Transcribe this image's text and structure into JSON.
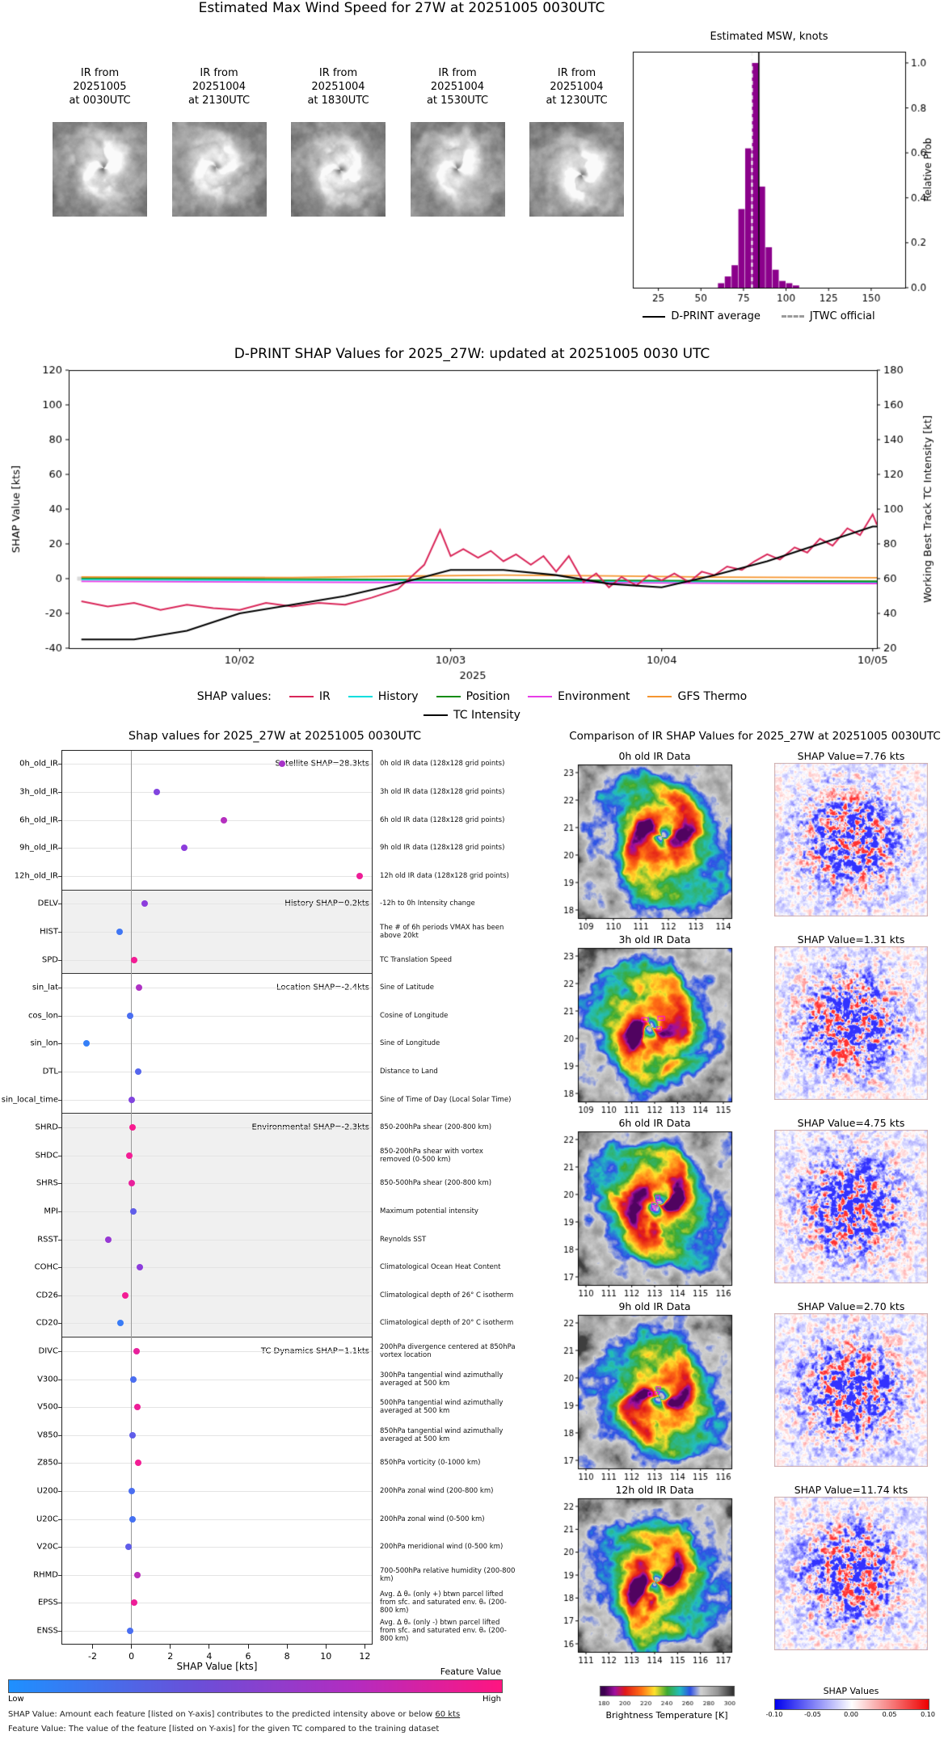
{
  "top": {
    "title": "Estimated Max Wind Speed for 27W at 20251005 0030UTC",
    "histogram_title": "Estimated MSW, knots",
    "thumbnails": [
      {
        "lines": [
          "IR from",
          "20251005",
          "at 0030UTC"
        ]
      },
      {
        "lines": [
          "IR from",
          "20251004",
          "at 2130UTC"
        ]
      },
      {
        "lines": [
          "IR from",
          "20251004",
          "at 1830UTC"
        ]
      },
      {
        "lines": [
          "IR from",
          "20251004",
          "at 1530UTC"
        ]
      },
      {
        "lines": [
          "IR from",
          "20251004",
          "at 1230UTC"
        ]
      }
    ],
    "legend": [
      {
        "label": "D-PRINT average",
        "color": "#000000",
        "style": "solid"
      },
      {
        "label": "JTWC official",
        "color": "#9a9a9a",
        "style": "dashed"
      }
    ]
  },
  "timeseries": {
    "title": "D-PRINT SHAP Values for 2025_27W: updated at 20251005 0030 UTC",
    "legend_prefix": "SHAP values:",
    "legend_row1": [
      {
        "label": "IR",
        "color": "#d92558"
      },
      {
        "label": "History",
        "color": "#00dede"
      },
      {
        "label": "Position",
        "color": "#128c12"
      },
      {
        "label": "Environment",
        "color": "#e83ce8"
      },
      {
        "label": "GFS Thermo",
        "color": "#f5952f"
      }
    ],
    "legend_row2": [
      {
        "label": "TC Intensity",
        "color": "#000000"
      }
    ]
  },
  "shap_panel": {
    "title": "Shap values for 2025_27W at 20251005 0030UTC",
    "xlabel": "SHAP Value [kts]",
    "colorbar": {
      "title": "Feature Value",
      "low": "Low",
      "high": "High"
    },
    "footnote1_pre": "SHAP Value: Amount each feature [listed on Y-axis] contributes to the predicted intensity above or below ",
    "footnote1_u": "60 kts",
    "footnote2": "Feature Value: The value of the feature [listed on Y-axis] for the given TC compared to the training dataset"
  },
  "comparison": {
    "title": "Comparison of IR SHAP Values for 2025_27W at 20251005 0030UTC",
    "rows": [
      {
        "ir_title": "0h old IR Data",
        "shap_title": "SHAP Value=7.76 kts",
        "xticks": [
          109,
          110,
          111,
          112,
          113,
          114
        ],
        "yticks": [
          18,
          19,
          20,
          21,
          22,
          23
        ],
        "seed": 11
      },
      {
        "ir_title": "3h old IR Data",
        "shap_title": "SHAP Value=1.31 kts",
        "xticks": [
          109,
          110,
          111,
          112,
          113,
          114,
          115
        ],
        "yticks": [
          18,
          19,
          20,
          21,
          22,
          23
        ],
        "seed": 23
      },
      {
        "ir_title": "6h old IR Data",
        "shap_title": "SHAP Value=4.75 kts",
        "xticks": [
          110,
          111,
          112,
          113,
          114,
          115,
          116
        ],
        "yticks": [
          17,
          18,
          19,
          20,
          21,
          22
        ],
        "seed": 37
      },
      {
        "ir_title": "9h old IR Data",
        "shap_title": "SHAP Value=2.70 kts",
        "xticks": [
          110,
          111,
          112,
          113,
          114,
          115,
          116
        ],
        "yticks": [
          17,
          18,
          19,
          20,
          21,
          22
        ],
        "seed": 41
      },
      {
        "ir_title": "12h old IR Data",
        "shap_title": "SHAP Value=11.74 kts",
        "xticks": [
          111,
          112,
          113,
          114,
          115,
          116,
          117
        ],
        "yticks": [
          16,
          17,
          18,
          19,
          20,
          21,
          22
        ],
        "seed": 53
      }
    ],
    "bt_colorbar": {
      "label": "Brightness Temperature [K]",
      "ticks": [
        180,
        200,
        220,
        240,
        260,
        280,
        300
      ]
    },
    "shap_colorbar": {
      "label": "SHAP Values",
      "ticks": [
        "-0.10",
        "-0.05",
        "0.00",
        "0.05",
        "0.10"
      ]
    }
  },
  "chart_data": [
    {
      "id": "msw_histogram",
      "type": "bar",
      "title": "Estimated MSW, knots",
      "ylabel": "Relative Prob",
      "xlim": [
        10,
        170
      ],
      "ylim": [
        0,
        1.05
      ],
      "xticks": [
        25,
        50,
        75,
        100,
        125,
        150
      ],
      "yticks": [
        0.0,
        0.2,
        0.4,
        0.6,
        0.8,
        1.0
      ],
      "bin_width": 4,
      "bin_centers": [
        62,
        66,
        70,
        74,
        78,
        82,
        86,
        90,
        94,
        98,
        102,
        106
      ],
      "values": [
        0.02,
        0.05,
        0.1,
        0.35,
        0.62,
        1.0,
        0.45,
        0.18,
        0.08,
        0.03,
        0.02,
        0.01
      ],
      "bar_color": "#8b008b",
      "dprint_average": 84,
      "jtwc_official": 80
    },
    {
      "id": "shap_timeseries",
      "type": "line",
      "title": "D-PRINT SHAP Values for 2025_27W: updated at 20251005 0030 UTC",
      "ylabel_left": "SHAP Value [kts]",
      "ylabel_right": "Working Best Track TC Intensity [kt]",
      "xlabel_year": "2025",
      "ylim_left": [
        -40,
        120
      ],
      "ylim_right": [
        20,
        180
      ],
      "yticks_left": [
        -40,
        -20,
        0,
        20,
        40,
        60,
        80,
        100,
        120
      ],
      "yticks_right": [
        20,
        40,
        60,
        80,
        100,
        120,
        140,
        160,
        180
      ],
      "x_range": [
        1.19,
        5.02
      ],
      "xtick_days": [
        2,
        3,
        4,
        5
      ],
      "xtick_labels": [
        "10/02",
        "10/03",
        "10/04",
        "10/05"
      ],
      "baseline_segment": {
        "x": [
          1.23,
          2.12
        ],
        "y": 0,
        "color": "#d9d9d9"
      },
      "series": [
        {
          "name": "History",
          "color": "#00dede",
          "axis": "left",
          "lw": 1.8,
          "x": [
            1.25,
            1.75,
            2.25,
            2.75,
            3.25,
            3.75,
            4.25,
            5.02
          ],
          "y": [
            -0.5,
            -0.8,
            -1,
            -1,
            -1.2,
            -1.5,
            -1.8,
            -2.2
          ]
        },
        {
          "name": "Position",
          "color": "#128c12",
          "axis": "left",
          "lw": 1.8,
          "x": [
            1.25,
            1.75,
            2.25,
            2.75,
            3.25,
            3.75,
            4.25,
            5.02
          ],
          "y": [
            0.3,
            0.1,
            -0.2,
            -0.5,
            -0.8,
            -1,
            -1.2,
            -1.5
          ]
        },
        {
          "name": "Environment",
          "color": "#e83ce8",
          "axis": "left",
          "lw": 1.8,
          "x": [
            1.25,
            1.75,
            2.25,
            2.75,
            3.25,
            3.75,
            4.25,
            5.02
          ],
          "y": [
            -1.6,
            -1.8,
            -2,
            -2.2,
            -2.4,
            -2.4,
            -2.6,
            -2.8
          ]
        },
        {
          "name": "GFS Thermo",
          "color": "#f5952f",
          "axis": "left",
          "lw": 1.8,
          "x": [
            1.25,
            1.75,
            2.25,
            2.75,
            3.25,
            3.75,
            4.25,
            5.02
          ],
          "y": [
            1,
            0.8,
            0.6,
            1.4,
            2,
            1.6,
            0.9,
            0.5
          ]
        },
        {
          "name": "IR",
          "color": "#d92558",
          "axis": "left",
          "lw": 2,
          "x": [
            1.25,
            1.375,
            1.5,
            1.625,
            1.75,
            1.875,
            2.0,
            2.125,
            2.25,
            2.375,
            2.5,
            2.625,
            2.75,
            2.875,
            2.95,
            3.0,
            3.06,
            3.13,
            3.19,
            3.25,
            3.31,
            3.38,
            3.44,
            3.5,
            3.56,
            3.63,
            3.69,
            3.75,
            3.81,
            3.88,
            3.94,
            4.0,
            4.06,
            4.13,
            4.19,
            4.25,
            4.31,
            4.38,
            4.44,
            4.5,
            4.56,
            4.63,
            4.69,
            4.75,
            4.81,
            4.88,
            4.94,
            5.0,
            5.02
          ],
          "y": [
            -13,
            -16,
            -14,
            -18,
            -15,
            -17,
            -18,
            -14,
            -16,
            -14,
            -15,
            -11,
            -6,
            8,
            28,
            13,
            17,
            12,
            16,
            10,
            14,
            8,
            13,
            4,
            13,
            -2,
            3,
            -5,
            1,
            -4,
            2,
            -1,
            3,
            -2,
            4,
            2,
            7,
            5,
            10,
            14,
            11,
            18,
            15,
            23,
            19,
            29,
            25,
            37,
            31
          ]
        },
        {
          "name": "TC Intensity",
          "color": "#000000",
          "axis": "right",
          "lw": 2.2,
          "x": [
            1.25,
            1.5,
            1.75,
            2.0,
            2.25,
            2.5,
            2.75,
            3.0,
            3.25,
            3.5,
            3.75,
            4.0,
            4.25,
            4.5,
            4.75,
            5.0,
            5.02
          ],
          "y": [
            25,
            25,
            30,
            40,
            45,
            50,
            57,
            65,
            65,
            62,
            57,
            55,
            62,
            70,
            80,
            90,
            90
          ]
        }
      ]
    },
    {
      "id": "shap_dotplot",
      "type": "scatter",
      "title": "Shap values for 2025_27W at 20251005 0030UTC",
      "xlabel": "SHAP Value [kts]",
      "xlim": [
        -3.6,
        12.4
      ],
      "xticks": [
        -2,
        0,
        2,
        4,
        6,
        8,
        10,
        12
      ],
      "groups": [
        {
          "label": "Satellite SHAP=28.3kts",
          "features": [
            {
              "name": "0h_old_IR",
              "shap": 7.76,
              "fv": 0.62,
              "desc": "0h old IR data (128x128 grid points)"
            },
            {
              "name": "3h_old_IR",
              "shap": 1.31,
              "fv": 0.45,
              "desc": "3h old IR data (128x128 grid points)"
            },
            {
              "name": "6h_old_IR",
              "shap": 4.75,
              "fv": 0.68,
              "desc": "6h old IR data (128x128 grid points)"
            },
            {
              "name": "9h_old_IR",
              "shap": 2.7,
              "fv": 0.5,
              "desc": "9h old IR data (128x128 grid points)"
            },
            {
              "name": "12h_old_IR",
              "shap": 11.74,
              "fv": 0.93,
              "desc": "12h old IR data (128x128 grid points)"
            }
          ]
        },
        {
          "label": "History SHAP=0.2kts",
          "features": [
            {
              "name": "DELV",
              "shap": 0.7,
              "fv": 0.5,
              "desc": "-12h to 0h Intensity change"
            },
            {
              "name": "HIST",
              "shap": -0.6,
              "fv": 0.15,
              "desc": "The # of 6h periods VMAX has been above 20kt"
            },
            {
              "name": "SPD",
              "shap": 0.15,
              "fv": 0.95,
              "desc": "TC Translation Speed"
            }
          ]
        },
        {
          "label": "Location SHAP=-2.4kts",
          "features": [
            {
              "name": "sin_lat",
              "shap": 0.4,
              "fv": 0.65,
              "desc": "Sine of Latitude"
            },
            {
              "name": "cos_lon",
              "shap": -0.05,
              "fv": 0.2,
              "desc": "Cosine of Longitude"
            },
            {
              "name": "sin_lon",
              "shap": -2.3,
              "fv": 0.1,
              "desc": "Sine of Longitude"
            },
            {
              "name": "DTL",
              "shap": 0.35,
              "fv": 0.25,
              "desc": "Distance to Land"
            },
            {
              "name": "sin_local_time",
              "shap": 0.0,
              "fv": 0.45,
              "desc": "Sine of Time of Day (Local Solar Time)"
            }
          ]
        },
        {
          "label": "Environmental SHAP=-2.3kts",
          "features": [
            {
              "name": "SHRD",
              "shap": 0.05,
              "fv": 0.97,
              "desc": "850-200hPa shear (200-800 km)"
            },
            {
              "name": "SHDC",
              "shap": -0.1,
              "fv": 0.95,
              "desc": "850-200hPa shear with vortex removed (0-500 km)"
            },
            {
              "name": "SHRS",
              "shap": 0.0,
              "fv": 0.9,
              "desc": "850-500hPa shear (200-800 km)"
            },
            {
              "name": "MPI",
              "shap": 0.1,
              "fv": 0.3,
              "desc": "Maximum potential intensity"
            },
            {
              "name": "RSST",
              "shap": -1.2,
              "fv": 0.55,
              "desc": "Reynolds SST"
            },
            {
              "name": "COHC",
              "shap": 0.45,
              "fv": 0.5,
              "desc": "Climatological Ocean Heat Content"
            },
            {
              "name": "CD26",
              "shap": -0.3,
              "fv": 0.95,
              "desc": "Climatological depth of 26° C isotherm"
            },
            {
              "name": "CD20",
              "shap": -0.55,
              "fv": 0.12,
              "desc": "Climatological depth of 20° C isotherm"
            }
          ]
        },
        {
          "label": "TC Dynamics SHAP=1.1kts",
          "features": [
            {
              "name": "DIVC",
              "shap": 0.25,
              "fv": 0.9,
              "desc": "200hPa divergence centered at 850hPa vortex location"
            },
            {
              "name": "V300",
              "shap": 0.1,
              "fv": 0.2,
              "desc": "300hPa tangential wind azimuthally averaged at 500 km"
            },
            {
              "name": "V500",
              "shap": 0.3,
              "fv": 0.93,
              "desc": "500hPa tangential wind azimuthally averaged at 500 km"
            },
            {
              "name": "V850",
              "shap": 0.05,
              "fv": 0.3,
              "desc": "850hPa tangential wind azimuthally averaged at 500 km"
            },
            {
              "name": "Z850",
              "shap": 0.35,
              "fv": 0.95,
              "desc": "850hPa vorticity (0-1000 km)"
            },
            {
              "name": "U200",
              "shap": 0.0,
              "fv": 0.2,
              "desc": "200hPa zonal wind (200-800 km)"
            },
            {
              "name": "U20C",
              "shap": 0.05,
              "fv": 0.18,
              "desc": "200hPa zonal wind (0-500 km)"
            },
            {
              "name": "V20C",
              "shap": -0.15,
              "fv": 0.3,
              "desc": "200hPa meridional wind (0-500 km)"
            },
            {
              "name": "RHMD",
              "shap": 0.3,
              "fv": 0.7,
              "desc": "700-500hPa relative humidity (200-800 km)"
            },
            {
              "name": "EPSS",
              "shap": 0.15,
              "fv": 0.93,
              "desc": "Avg. Δ θₑ (only +) btwn parcel lifted from sfc. and saturated env. θₑ (200-800 km)"
            },
            {
              "name": "ENSS",
              "shap": -0.05,
              "fv": 0.2,
              "desc": "Avg. Δ θₑ (only -) btwn parcel lifted from sfc. and saturated env. θₑ (200-800 km)"
            }
          ]
        }
      ]
    }
  ]
}
